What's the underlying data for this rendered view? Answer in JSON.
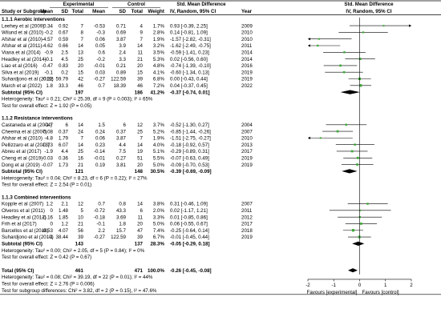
{
  "headers": {
    "experimental": "Experimental",
    "control": "Control",
    "smd_left": "Std. Mean Difference",
    "smd_right": "Std. Mean Difference",
    "study": "Study or Subgroup",
    "mean_e": "Mean",
    "sd_e": "SD",
    "total_e": "Total",
    "mean_c": "Mean",
    "sd_c": "SD",
    "total_c": "Total",
    "weight": "Weight",
    "ci_left": "IV, Random, 95% CI",
    "year": "Year",
    "ci_right": "IV, Random, 95% CI"
  },
  "axis": {
    "ticks": [
      "-2",
      "-1",
      "0",
      "1",
      "2"
    ],
    "favours_left": "Favours [experimental]",
    "favours_right": "Favours [control]"
  },
  "chart_data": {
    "type": "forest",
    "xlim": [
      -2,
      2
    ],
    "subgroups": [
      {
        "title": "1.1.1 Aerobic interventions",
        "studies": [
          {
            "name": "Leehey et al (2009)",
            "mean_e": "0.34",
            "sd_e": "0.92",
            "total_e": "7",
            "mean_c": "-0.53",
            "sd_c": "0.71",
            "total_c": "4",
            "weight": "1.7%",
            "ci": "0.93 [-0.39, 2.25]",
            "year": "2009",
            "est": 0.93,
            "lo": -0.39,
            "hi": 2.25
          },
          {
            "name": "Wilund et al (2010)",
            "mean_e": "-0.2",
            "sd_e": "0.67",
            "total_e": "8",
            "mean_c": "-0.3",
            "sd_c": "0.69",
            "total_c": "9",
            "weight": "2.8%",
            "ci": "0.14 [-0.81, 1.09]",
            "year": "2010",
            "est": 0.14,
            "lo": -0.81,
            "hi": 1.09
          },
          {
            "name": "Afshar et al (2010)",
            "mean_e": "-4.57",
            "sd_e": "0.59",
            "total_e": "7",
            "mean_c": "0.06",
            "sd_c": "3.87",
            "total_c": "7",
            "weight": "1.9%",
            "ci": "-1.57 [-2.82, -0.31]",
            "year": "2010",
            "est": -1.57,
            "lo": -2.82,
            "hi": -0.31
          },
          {
            "name": "Afshar et al (2011)",
            "mean_e": "-4.62",
            "sd_e": "0.66",
            "total_e": "14",
            "mean_c": "0.05",
            "sd_c": "3.9",
            "total_c": "14",
            "weight": "3.2%",
            "ci": "-1.62 [-2.49, -0.75]",
            "year": "2011",
            "est": -1.62,
            "lo": -2.49,
            "hi": -0.75
          },
          {
            "name": "Viana et al (2014)",
            "mean_e": "-0.9",
            "sd_e": "2.5",
            "total_e": "13",
            "mean_c": "0.6",
            "sd_c": "2.4",
            "total_c": "11",
            "weight": "3.5%",
            "ci": "-0.59 [-1.41, 0.23]",
            "year": "2014",
            "est": -0.59,
            "lo": -1.41,
            "hi": 0.23
          },
          {
            "name": "Headley et al (2014)",
            "mean_e": "-0.1",
            "sd_e": "4.5",
            "total_e": "25",
            "mean_c": "-0.2",
            "sd_c": "3.3",
            "total_c": "21",
            "weight": "5.3%",
            "ci": "0.02 [-0.56, 0.60]",
            "year": "2014",
            "est": 0.02,
            "lo": -0.56,
            "hi": 0.6
          },
          {
            "name": "Liao et al (2016)",
            "mean_e": "-0.47",
            "sd_e": "0.83",
            "total_e": "20",
            "mean_c": "-0.01",
            "sd_c": "0.21",
            "total_c": "20",
            "weight": "4.8%",
            "ci": "-0.74 [-1.39, -0.10]",
            "year": "2016",
            "est": -0.74,
            "lo": -1.39,
            "hi": -0.1
          },
          {
            "name": "Silva et al (2019)",
            "mean_e": "-0.1",
            "sd_e": "0.2",
            "total_e": "15",
            "mean_c": "0.03",
            "sd_c": "0.89",
            "total_c": "15",
            "weight": "4.1%",
            "ci": "-0.60 [-1.34, 0.13]",
            "year": "2019",
            "est": -0.6,
            "lo": -1.34,
            "hi": 0.13
          },
          {
            "name": "Suhardjono et al (2019)",
            "mean_e": "-0.12",
            "sd_e": "59.79",
            "total_e": "42",
            "mean_c": "-0.27",
            "sd_c": "122.59",
            "total_c": "39",
            "weight": "6.8%",
            "ci": "0.00 [-0.43, 0.44]",
            "year": "2019",
            "est": 0.0,
            "lo": -0.43,
            "hi": 0.44
          },
          {
            "name": "March et al (2022)",
            "mean_e": "1.8",
            "sd_e": "33.3",
            "total_e": "46",
            "mean_c": "0.7",
            "sd_c": "18.39",
            "total_c": "46",
            "weight": "7.2%",
            "ci": "0.04 [-0.37, 0.45]",
            "year": "2022",
            "est": 0.04,
            "lo": -0.37,
            "hi": 0.45
          }
        ],
        "subtotal": {
          "label": "Subtotal (95% CI)",
          "total_e": "197",
          "total_c": "186",
          "weight": "41.2%",
          "ci": "-0.37 [-0.74, 0.01]",
          "est": -0.37,
          "lo": -0.74,
          "hi": 0.01
        },
        "heterogeneity": "Heterogeneity: Tau² = 0.21; Chi² = 25.39, df = 9 (P = 0.003); I² = 65%",
        "overall_effect": "Test for overall effect: Z = 1.92 (P = 0.05)"
      },
      {
        "title": "1.1.2 Resistance interventions",
        "studies": [
          {
            "name": "Castaneda et al (2004)",
            "mean_e": "-1.7",
            "sd_e": "6",
            "total_e": "14",
            "mean_c": "1.5",
            "sd_c": "6",
            "total_c": "12",
            "weight": "3.7%",
            "ci": "-0.52 [-1.30, 0.27]",
            "year": "2004",
            "est": -0.52,
            "lo": -1.3,
            "hi": 0.27
          },
          {
            "name": "Cheema et al (2007)",
            "mean_e": "-0.08",
            "sd_e": "0.37",
            "total_e": "24",
            "mean_c": "0.24",
            "sd_c": "0.37",
            "total_c": "25",
            "weight": "5.2%",
            "ci": "-0.85 [-1.44, -0.26]",
            "year": "2007",
            "est": -0.85,
            "lo": -1.44,
            "hi": -0.26
          },
          {
            "name": "Afshar et al (2010)",
            "mean_e": "-4.8",
            "sd_e": "1.79",
            "total_e": "7",
            "mean_c": "0.06",
            "sd_c": "3.87",
            "total_c": "7",
            "weight": "1.9%",
            "ci": "-1.51 [-2.75, -0.27]",
            "year": "2010",
            "est": -1.51,
            "lo": -2.75,
            "hi": -0.27
          },
          {
            "name": "Pellizzaro et al (2013)",
            "mean_e": "-0.73",
            "sd_e": "6.07",
            "total_e": "14",
            "mean_c": "0.23",
            "sd_c": "4.4",
            "total_c": "14",
            "weight": "4.0%",
            "ci": "-0.18 [-0.92, 0.57]",
            "year": "2013",
            "est": -0.18,
            "lo": -0.92,
            "hi": 0.57
          },
          {
            "name": "Abreu et al (2017)",
            "mean_e": "-1.9",
            "sd_e": "4.4",
            "total_e": "25",
            "mean_c": "-0.14",
            "sd_c": "7.5",
            "total_c": "19",
            "weight": "5.1%",
            "ci": "-0.29 [-0.89, 0.31]",
            "year": "2017",
            "est": -0.29,
            "lo": -0.89,
            "hi": 0.31
          },
          {
            "name": "Cheng et al (2019)",
            "mean_e": "-0.03",
            "sd_e": "0.36",
            "total_e": "16",
            "mean_c": "-0.01",
            "sd_c": "0.27",
            "total_c": "51",
            "weight": "5.5%",
            "ci": "-0.07 [-0.63, 0.49]",
            "year": "2019",
            "est": -0.07,
            "lo": -0.63,
            "hi": 0.49
          },
          {
            "name": "Dong et al (2019)",
            "mean_e": "-0.07",
            "sd_e": "1.73",
            "total_e": "21",
            "mean_c": "0.19",
            "sd_c": "3.81",
            "total_c": "20",
            "weight": "5.0%",
            "ci": "-0.09 [-0.70, 0.53]",
            "year": "2019",
            "est": -0.09,
            "lo": -0.7,
            "hi": 0.53
          }
        ],
        "subtotal": {
          "label": "Subtotal (95% CI)",
          "total_e": "121",
          "total_c": "148",
          "weight": "30.5%",
          "ci": "-0.39 [-0.69, -0.09]",
          "est": -0.39,
          "lo": -0.69,
          "hi": -0.09
        },
        "heterogeneity": "Heterogeneity: Tau² = 0.04; Chi² = 8.23, df = 6 (P = 0.22); I² = 27%",
        "overall_effect": "Test for overall effect: Z = 2.54 (P = 0.01)"
      },
      {
        "title": "1.1.3 Combined interventions",
        "studies": [
          {
            "name": "Kopple et al (2007)",
            "mean_e": "1.2",
            "sd_e": "2.1",
            "total_e": "12",
            "mean_c": "0.7",
            "sd_c": "0.8",
            "total_c": "14",
            "weight": "3.8%",
            "ci": "0.31 [-0.46, 1.09]",
            "year": "2007",
            "est": 0.31,
            "lo": -0.46,
            "hi": 1.09
          },
          {
            "name": "Olveros et al (2011)",
            "mean_e": "0",
            "sd_e": "1.48",
            "total_e": "5",
            "mean_c": "-0.72",
            "sd_c": "43.3",
            "total_c": "6",
            "weight": "2.0%",
            "ci": "0.02 [-1.17, 1.21]",
            "year": "2011",
            "est": 0.02,
            "lo": -1.17,
            "hi": 1.21
          },
          {
            "name": "Headley et al (2012)",
            "mean_e": "-0.16",
            "sd_e": "1.85",
            "total_e": "10",
            "mean_c": "-0.18",
            "sd_c": "3.69",
            "total_c": "11",
            "weight": "3.3%",
            "ci": "0.01 [-0.85, 0.86]",
            "year": "2012",
            "est": 0.01,
            "lo": -0.85,
            "hi": 0.86
          },
          {
            "name": "Frih et al (2017)",
            "mean_e": "0",
            "sd_e": "1.2",
            "total_e": "21",
            "mean_c": "-0.1",
            "sd_c": "1.8",
            "total_c": "20",
            "weight": "5.0%",
            "ci": "0.06 [-0.55, 0.67]",
            "year": "2017",
            "est": 0.06,
            "lo": -0.55,
            "hi": 0.67
          },
          {
            "name": "Barcellos et al (2018)",
            "mean_e": "-0.53",
            "sd_e": "4.07",
            "total_e": "56",
            "mean_c": "2.2",
            "sd_c": "15.7",
            "total_c": "47",
            "weight": "7.4%",
            "ci": "-0.25 [-0.64, 0.14]",
            "year": "2018",
            "est": -0.25,
            "lo": -0.64,
            "hi": 0.14
          },
          {
            "name": "Suhardjono et al (2019)",
            "mean_e": "-1",
            "sd_e": "38.44",
            "total_e": "39",
            "mean_c": "-0.27",
            "sd_c": "122.59",
            "total_c": "39",
            "weight": "6.7%",
            "ci": "-0.01 [-0.45, 0.44]",
            "year": "2019",
            "est": -0.01,
            "lo": -0.45,
            "hi": 0.44
          }
        ],
        "subtotal": {
          "label": "Subtotal (95% CI)",
          "total_e": "143",
          "total_c": "137",
          "weight": "28.3%",
          "ci": "-0.05 [-0.29, 0.18]",
          "est": -0.05,
          "lo": -0.29,
          "hi": 0.18
        },
        "heterogeneity": "Heterogeneity: Tau² = 0.00; Chi² = 2.05, df = 5 (P = 0.84); I² = 0%",
        "overall_effect": "Test for overall effect: Z = 0.42 (P = 0.67)"
      }
    ],
    "total": {
      "label": "Total (95% CI)",
      "total_e": "461",
      "total_c": "471",
      "weight": "100.0%",
      "ci": "-0.26 [-0.45, -0.08]",
      "est": -0.26,
      "lo": -0.45,
      "hi": -0.08
    },
    "footer": [
      "Heterogeneity: Tau² = 0.08; Chi² = 39.19, df = 22 (P = 0.01); I² = 44%",
      "Test for overall effect: Z = 2.76 (P = 0.006)",
      "Test for subgroup differences: Chi² = 3.82, df = 2 (P = 0.15), I² = 47.6%"
    ],
    "colors": {
      "square": "#3aaa35",
      "diamond": "#000000",
      "line": "#000000",
      "header_rule": "#000000"
    }
  }
}
